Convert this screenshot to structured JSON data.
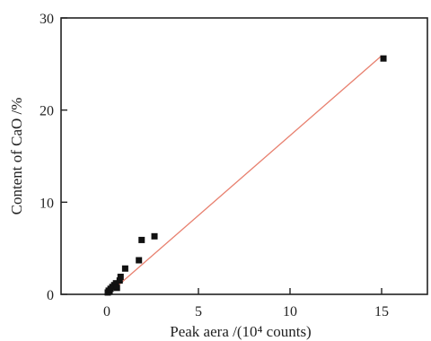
{
  "chart_data": {
    "type": "scatter",
    "title": "",
    "xlabel": "Peak aera /(10⁴ counts)",
    "ylabel": "Content of CaO /%",
    "xlim": [
      -2.5,
      17.5
    ],
    "ylim": [
      0,
      30
    ],
    "xticks": [
      0,
      5,
      10,
      15
    ],
    "yticks": [
      0,
      10,
      20,
      30
    ],
    "xtick_labels": [
      "0",
      "5",
      "10",
      "15"
    ],
    "ytick_labels": [
      "0",
      "10",
      "20",
      "30"
    ],
    "grid": false,
    "series": [
      {
        "points": [
          {
            "x": 0.05,
            "y": 0.2
          },
          {
            "x": 0.1,
            "y": 0.4
          },
          {
            "x": 0.15,
            "y": 0.3
          },
          {
            "x": 0.2,
            "y": 0.6
          },
          {
            "x": 0.3,
            "y": 0.8
          },
          {
            "x": 0.4,
            "y": 1.0
          },
          {
            "x": 0.5,
            "y": 1.2
          },
          {
            "x": 0.55,
            "y": 0.7
          },
          {
            "x": 0.7,
            "y": 1.5
          },
          {
            "x": 0.75,
            "y": 1.9
          },
          {
            "x": 1.0,
            "y": 2.8
          },
          {
            "x": 1.75,
            "y": 3.7
          },
          {
            "x": 1.9,
            "y": 5.9
          },
          {
            "x": 2.6,
            "y": 6.3
          },
          {
            "x": 15.1,
            "y": 25.6
          }
        ],
        "color": "#111111",
        "marker": "square"
      }
    ],
    "fit_line": {
      "x": [
        0.0,
        15.0
      ],
      "y": [
        -0.1,
        25.9
      ],
      "color": "#e8806f"
    }
  }
}
